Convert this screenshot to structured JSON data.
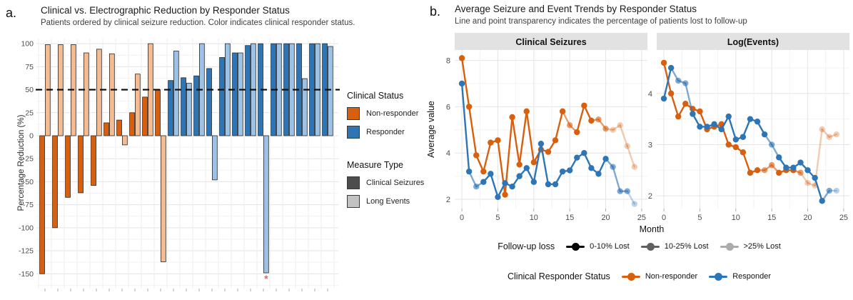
{
  "panel_a": {
    "label": "a.",
    "legend_clinical_status": {
      "title": "Clinical Status",
      "items": [
        {
          "label": "Non-responder",
          "color": "#D85F0E"
        },
        {
          "label": "Responder",
          "color": "#2E75B6"
        }
      ]
    },
    "legend_measure_type": {
      "title": "Measure Type",
      "items": [
        {
          "label": "Clinical Seizures",
          "color": "#4D4D4D"
        },
        {
          "label": "Long Events",
          "color": "#C2C2C2"
        }
      ]
    },
    "clipped_marker": {
      "symbol": "*",
      "color": "#F05C5C"
    }
  },
  "panel_b": {
    "label": "b.",
    "legend_followup": {
      "title": "Follow-up loss",
      "color": "#000000",
      "items": [
        {
          "label": "0-10% Lost",
          "alpha": 1
        },
        {
          "label": "10-25% Lost",
          "alpha": 0.62
        },
        {
          "label": ">25% Lost",
          "alpha": 0.32
        }
      ]
    },
    "legend_responder": {
      "title": "Clinical Responder Status",
      "items": [
        {
          "label": "Non-responder",
          "color": "#D85F0E"
        },
        {
          "label": "Responder",
          "color": "#2E75B6"
        }
      ]
    }
  },
  "chart_data": [
    {
      "id": "reduction_by_patient",
      "type": "bar",
      "title": "Clinical vs. Electrographic Reduction by Responder Status",
      "subtitle": "Patients ordered by clinical seizure reduction. Color indicates clinical responder status.",
      "ylabel": "Percentage Reduction (%)",
      "ylim": [
        -163,
        104
      ],
      "yticks": [
        100,
        75,
        50,
        25,
        0,
        -25,
        -50,
        -75,
        -100,
        -125,
        -150
      ],
      "reference_line": 50,
      "grid": true,
      "colors": {
        "nonresponder_clinical": "#D85F0E",
        "nonresponder_long": "#F3BC92",
        "responder_clinical": "#2E75B6",
        "responder_long": "#9CC2E5"
      },
      "measures": [
        "Clinical Seizures",
        "Long Events"
      ],
      "patients": [
        {
          "responder": false,
          "clinical": -150,
          "long_events": 99
        },
        {
          "responder": false,
          "clinical": -100,
          "long_events": 99
        },
        {
          "responder": false,
          "clinical": -67,
          "long_events": 99
        },
        {
          "responder": false,
          "clinical": -62,
          "long_events": 90
        },
        {
          "responder": false,
          "clinical": -54,
          "long_events": 94
        },
        {
          "responder": false,
          "clinical": 14,
          "long_events": 89
        },
        {
          "responder": false,
          "clinical": 17,
          "long_events": -10
        },
        {
          "responder": false,
          "clinical": 25,
          "long_events": 67
        },
        {
          "responder": false,
          "clinical": 42,
          "long_events": 100
        },
        {
          "responder": false,
          "clinical": 50,
          "long_events": -137
        },
        {
          "responder": true,
          "clinical": 60,
          "long_events": 92
        },
        {
          "responder": true,
          "clinical": 63,
          "long_events": 57
        },
        {
          "responder": true,
          "clinical": 65,
          "long_events": 100
        },
        {
          "responder": true,
          "clinical": 73,
          "long_events": -48
        },
        {
          "responder": true,
          "clinical": 85,
          "long_events": 100
        },
        {
          "responder": true,
          "clinical": 90,
          "long_events": 90
        },
        {
          "responder": true,
          "clinical": 98,
          "long_events": 100
        },
        {
          "responder": true,
          "clinical": 100,
          "long_events": -149,
          "clipped": true
        },
        {
          "responder": true,
          "clinical": 100,
          "long_events": 100
        },
        {
          "responder": true,
          "clinical": 100,
          "long_events": 100
        },
        {
          "responder": true,
          "clinical": 100,
          "long_events": 62
        },
        {
          "responder": true,
          "clinical": 100,
          "long_events": 100
        },
        {
          "responder": true,
          "clinical": 100,
          "long_events": 97
        }
      ]
    },
    {
      "id": "clinical_seizures_trend",
      "type": "line",
      "title": "Average Seizure and Event Trends by Responder Status",
      "subtitle": "Line and point transparency indicates the percentage of patients lost to follow-up",
      "facet_label": "Clinical Seizures",
      "xlabel": "Month",
      "ylabel": "Average value",
      "xlim": [
        -1,
        25.8
      ],
      "ylim": [
        1.6,
        8.45
      ],
      "xticks": [
        0,
        5,
        10,
        15,
        20,
        25
      ],
      "yticks": [
        2,
        4,
        6,
        8
      ],
      "grid": true,
      "x": [
        0,
        1,
        2,
        3,
        4,
        5,
        6,
        7,
        8,
        9,
        10,
        11,
        12,
        13,
        14,
        15,
        16,
        17,
        18,
        19,
        20,
        21,
        22,
        23,
        24
      ],
      "series": [
        {
          "name": "Non-responder",
          "color": "#D85F0E",
          "y": [
            8.1,
            6.0,
            3.9,
            3.2,
            4.45,
            4.55,
            2.2,
            5.55,
            3.5,
            5.8,
            3.6,
            4.15,
            4.05,
            4.55,
            5.8,
            5.2,
            4.9,
            6.05,
            5.4,
            5.45,
            5.05,
            5.0,
            5.2,
            4.3,
            3.4
          ],
          "alpha": [
            1,
            1,
            1,
            1,
            1,
            1,
            1,
            1,
            1,
            1,
            1,
            1,
            1,
            1,
            1,
            0.62,
            1,
            1,
            1,
            0.62,
            0.62,
            0.32,
            0.32,
            0.32,
            0.32
          ]
        },
        {
          "name": "Responder",
          "color": "#2E75B6",
          "y": [
            7.0,
            3.2,
            2.55,
            2.75,
            3.1,
            2.1,
            2.7,
            2.55,
            3.0,
            3.35,
            2.75,
            4.4,
            2.65,
            2.65,
            3.2,
            3.25,
            3.8,
            4.0,
            3.35,
            3.1,
            3.75,
            3.4,
            2.35,
            2.35,
            1.8
          ],
          "alpha": [
            1,
            1,
            0.62,
            1,
            1,
            1,
            1,
            1,
            1,
            1,
            1,
            1,
            1,
            1,
            1,
            1,
            1,
            1,
            1,
            1,
            1,
            0.62,
            0.62,
            0.62,
            0.32
          ]
        }
      ]
    },
    {
      "id": "log_events_trend",
      "type": "line",
      "facet_label": "Log(Events)",
      "xlabel": "Month",
      "ylabel": "Average value",
      "xlim": [
        -1,
        25.8
      ],
      "ylim": [
        1.75,
        4.85
      ],
      "xticks": [
        0,
        5,
        10,
        15,
        20,
        25
      ],
      "yticks": [
        2,
        3,
        4
      ],
      "grid": true,
      "x": [
        0,
        1,
        2,
        3,
        4,
        5,
        6,
        7,
        8,
        9,
        10,
        11,
        12,
        13,
        14,
        15,
        16,
        17,
        18,
        19,
        20,
        21,
        22,
        23,
        24
      ],
      "series": [
        {
          "name": "Non-responder",
          "color": "#D85F0E",
          "y": [
            4.6,
            4.0,
            3.55,
            3.8,
            3.7,
            3.65,
            3.3,
            3.35,
            3.4,
            3.0,
            2.95,
            2.85,
            2.45,
            2.5,
            2.5,
            2.6,
            2.45,
            2.5,
            2.5,
            2.45,
            2.25,
            2.2,
            3.3,
            3.15,
            3.2
          ],
          "alpha": [
            1,
            1,
            1,
            1,
            1,
            1,
            1,
            1,
            1,
            1,
            1,
            1,
            1,
            1,
            0.62,
            0.62,
            1,
            1,
            1,
            0.62,
            0.32,
            0.32,
            0.32,
            0.32,
            0.32
          ]
        },
        {
          "name": "Responder",
          "color": "#2E75B6",
          "y": [
            3.9,
            4.5,
            4.25,
            4.2,
            3.6,
            3.35,
            3.35,
            3.4,
            3.3,
            3.55,
            3.1,
            3.15,
            3.5,
            3.45,
            3.2,
            3.0,
            2.75,
            2.55,
            2.55,
            2.65,
            2.5,
            2.35,
            1.9,
            2.1,
            2.1
          ],
          "alpha": [
            1,
            1,
            0.62,
            0.62,
            1,
            1,
            1,
            1,
            1,
            1,
            1,
            1,
            1,
            1,
            1,
            0.62,
            1,
            1,
            1,
            1,
            1,
            1,
            1,
            0.62,
            0.32
          ]
        }
      ]
    }
  ]
}
